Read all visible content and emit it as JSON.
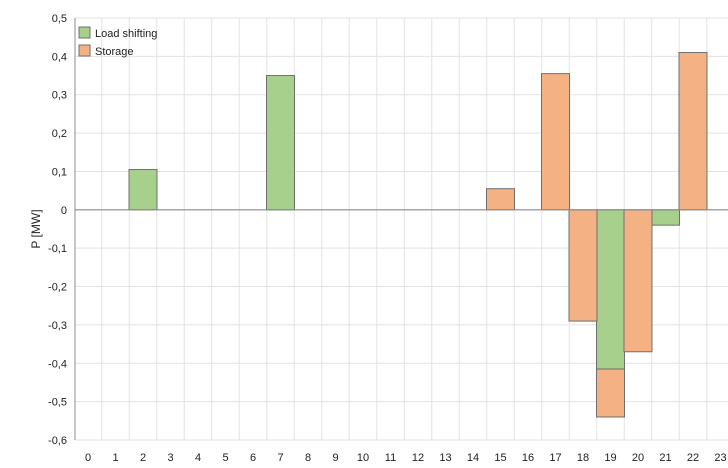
{
  "chart_data": {
    "type": "bar",
    "stacked": true,
    "title": "",
    "xlabel": "",
    "ylabel": "P [MW]",
    "ylim": [
      -0.6,
      0.5
    ],
    "yticks": [
      0.5,
      0.4,
      0.3,
      0.2,
      0.1,
      0,
      -0.1,
      -0.2,
      -0.3,
      -0.4,
      -0.5,
      -0.6
    ],
    "ytick_labels": [
      "0,5",
      "0,4",
      "0,3",
      "0,2",
      "0,1",
      "0",
      "-0,1",
      "-0,2",
      "-0,3",
      "-0,4",
      "-0,5",
      "-0,6"
    ],
    "categories": [
      "0",
      "1",
      "2",
      "3",
      "4",
      "5",
      "6",
      "7",
      "8",
      "9",
      "10",
      "11",
      "12",
      "13",
      "14",
      "15",
      "16",
      "17",
      "18",
      "19",
      "20",
      "21",
      "22",
      "23"
    ],
    "grid": true,
    "legend_position": "top-left",
    "series": [
      {
        "name": "Load shifting",
        "color": "#a8d08d",
        "values": [
          0,
          0,
          0.105,
          0,
          0,
          0,
          0,
          0.35,
          0,
          0,
          0,
          0,
          0,
          0,
          0,
          0,
          0,
          0,
          0,
          -0.415,
          0,
          -0.04,
          0,
          0
        ]
      },
      {
        "name": "Storage",
        "color": "#f4b183",
        "values": [
          0,
          0,
          0,
          0,
          0,
          0,
          0,
          0,
          0,
          0,
          0,
          0,
          0,
          0,
          0,
          0.055,
          0,
          0.355,
          -0.29,
          -0.125,
          -0.37,
          0,
          0.41,
          0
        ]
      }
    ]
  }
}
